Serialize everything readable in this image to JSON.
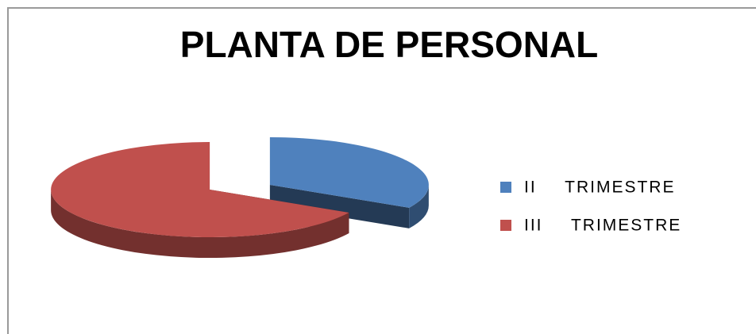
{
  "chart_data": {
    "type": "pie3d",
    "title": "PLANTA DE PERSONAL",
    "categories": [
      "II TRIMESTRE",
      "III TRIMESTRE"
    ],
    "values": [
      33,
      67
    ],
    "colors": [
      "#4f81bd",
      "#c0504d"
    ],
    "legend": "right"
  }
}
